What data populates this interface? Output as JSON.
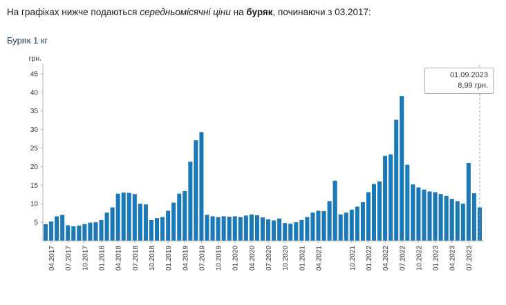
{
  "intro": {
    "part1": "На графіках нижче подаються ",
    "part2": "середньомісячні ціни",
    "part3": " на ",
    "part4": "буряк",
    "part5": ", починаючи з 03.2017:"
  },
  "chart": {
    "title": "Буряк 1 кг",
    "tooltip": {
      "date": "01.09.2023",
      "value": "8,99 грн."
    }
  },
  "chart_data": {
    "type": "bar",
    "title": "Буряк 1 кг",
    "xlabel": "",
    "ylabel": "грн.",
    "ylim": [
      0,
      47
    ],
    "y_ticks": [
      5,
      10,
      15,
      20,
      25,
      30,
      35,
      40,
      45
    ],
    "grid": false,
    "legend": "none",
    "categories": [
      "03.2017",
      "04.2017",
      "05.2017",
      "06.2017",
      "07.2017",
      "08.2017",
      "09.2017",
      "10.2017",
      "11.2017",
      "12.2017",
      "01.2018",
      "02.2018",
      "03.2018",
      "04.2018",
      "05.2018",
      "06.2018",
      "07.2018",
      "08.2018",
      "09.2018",
      "10.2018",
      "11.2018",
      "12.2018",
      "01.2019",
      "02.2019",
      "03.2019",
      "04.2019",
      "05.2019",
      "06.2019",
      "07.2019",
      "08.2019",
      "09.2019",
      "10.2019",
      "11.2019",
      "12.2019",
      "01.2020",
      "02.2020",
      "03.2020",
      "04.2020",
      "05.2020",
      "06.2020",
      "07.2020",
      "08.2020",
      "09.2020",
      "10.2020",
      "11.2020",
      "12.2020",
      "01.2021",
      "02.2021",
      "03.2021",
      "04.2021",
      "05.2021",
      "06.2021",
      "07.2021",
      "08.2021",
      "09.2021",
      "10.2021",
      "11.2021",
      "12.2021",
      "01.2022",
      "02.2022",
      "03.2022",
      "04.2022",
      "05.2022",
      "06.2022",
      "07.2022",
      "08.2022",
      "09.2022",
      "10.2022",
      "11.2022",
      "12.2022",
      "01.2023",
      "02.2023",
      "03.2023",
      "04.2023",
      "05.2023",
      "06.2023",
      "07.2023",
      "08.2023",
      "09.2023"
    ],
    "values": [
      4.5,
      5.2,
      6.6,
      7.0,
      4.2,
      3.9,
      4.1,
      4.5,
      4.9,
      5.0,
      5.6,
      7.6,
      9.0,
      12.7,
      13.0,
      12.9,
      12.6,
      10.0,
      9.8,
      5.6,
      6.1,
      6.4,
      8.1,
      10.3,
      12.7,
      13.4,
      21.3,
      27.1,
      29.3,
      7.0,
      6.6,
      6.4,
      6.6,
      6.5,
      6.6,
      6.4,
      6.8,
      7.1,
      6.9,
      6.3,
      5.8,
      5.5,
      6.0,
      4.8,
      4.6,
      5.0,
      5.6,
      6.4,
      7.6,
      8.1,
      8.0,
      10.7,
      16.2,
      7.1,
      7.6,
      8.4,
      9.2,
      10.4,
      13.1,
      15.3,
      16.0,
      22.9,
      23.3,
      32.6,
      39.0,
      20.5,
      15.2,
      14.4,
      13.8,
      13.3,
      13.1,
      12.6,
      12.1,
      11.3,
      10.7,
      10.0,
      21.0,
      12.8,
      8.99
    ],
    "x_ticks": [
      {
        "i": 1,
        "label": "04.2017"
      },
      {
        "i": 4,
        "label": "07.2017"
      },
      {
        "i": 7,
        "label": "10.2017"
      },
      {
        "i": 10,
        "label": "01.2018"
      },
      {
        "i": 13,
        "label": "04.2018"
      },
      {
        "i": 16,
        "label": "07.2018"
      },
      {
        "i": 19,
        "label": "10.2018"
      },
      {
        "i": 22,
        "label": "01.2019"
      },
      {
        "i": 25,
        "label": "04.2019"
      },
      {
        "i": 28,
        "label": "07.2019"
      },
      {
        "i": 31,
        "label": "10.2019"
      },
      {
        "i": 34,
        "label": "01.2020"
      },
      {
        "i": 37,
        "label": "04.2020"
      },
      {
        "i": 40,
        "label": "07.2020"
      },
      {
        "i": 43,
        "label": "10.2020"
      },
      {
        "i": 46,
        "label": "01.2021"
      },
      {
        "i": 49,
        "label": "04.2021"
      },
      {
        "i": 55,
        "label": "10.2021"
      },
      {
        "i": 58,
        "label": "01.2022"
      },
      {
        "i": 61,
        "label": "04.2022"
      },
      {
        "i": 64,
        "label": "07.2022"
      },
      {
        "i": 67,
        "label": "10.2022"
      },
      {
        "i": 70,
        "label": "01.2023"
      },
      {
        "i": 73,
        "label": "04.2023"
      },
      {
        "i": 76,
        "label": "07.2023"
      }
    ],
    "annotation": {
      "date": "01.09.2023",
      "value_text": "8,99 грн.",
      "value": 8.99,
      "month": "09.2023"
    },
    "colors": {
      "bar": "#1b79b7",
      "axis": "#b3b3b3",
      "crosshair": "#999999"
    }
  }
}
